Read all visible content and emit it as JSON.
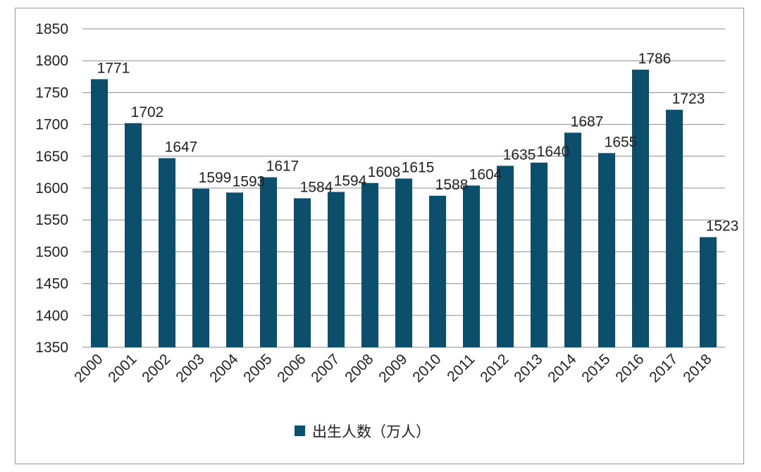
{
  "chart_data": {
    "type": "bar",
    "categories": [
      "2000",
      "2001",
      "2002",
      "2003",
      "2004",
      "2005",
      "2006",
      "2007",
      "2008",
      "2009",
      "2010",
      "2011",
      "2012",
      "2013",
      "2014",
      "2015",
      "2016",
      "2017",
      "2018"
    ],
    "series": [
      {
        "name": "出生人数（万人）",
        "color": "#0b4f6c",
        "values": [
          1771,
          1702,
          1647,
          1599,
          1593,
          1617,
          1584,
          1594,
          1608,
          1615,
          1588,
          1604,
          1635,
          1640,
          1687,
          1655,
          1786,
          1723,
          1523
        ]
      }
    ],
    "ylim": [
      1350,
      1850
    ],
    "yticks": [
      1350,
      1400,
      1450,
      1500,
      1550,
      1600,
      1650,
      1700,
      1750,
      1800,
      1850
    ],
    "grid": true,
    "legend": "bottom",
    "title": "",
    "xlabel": "",
    "ylabel": ""
  }
}
